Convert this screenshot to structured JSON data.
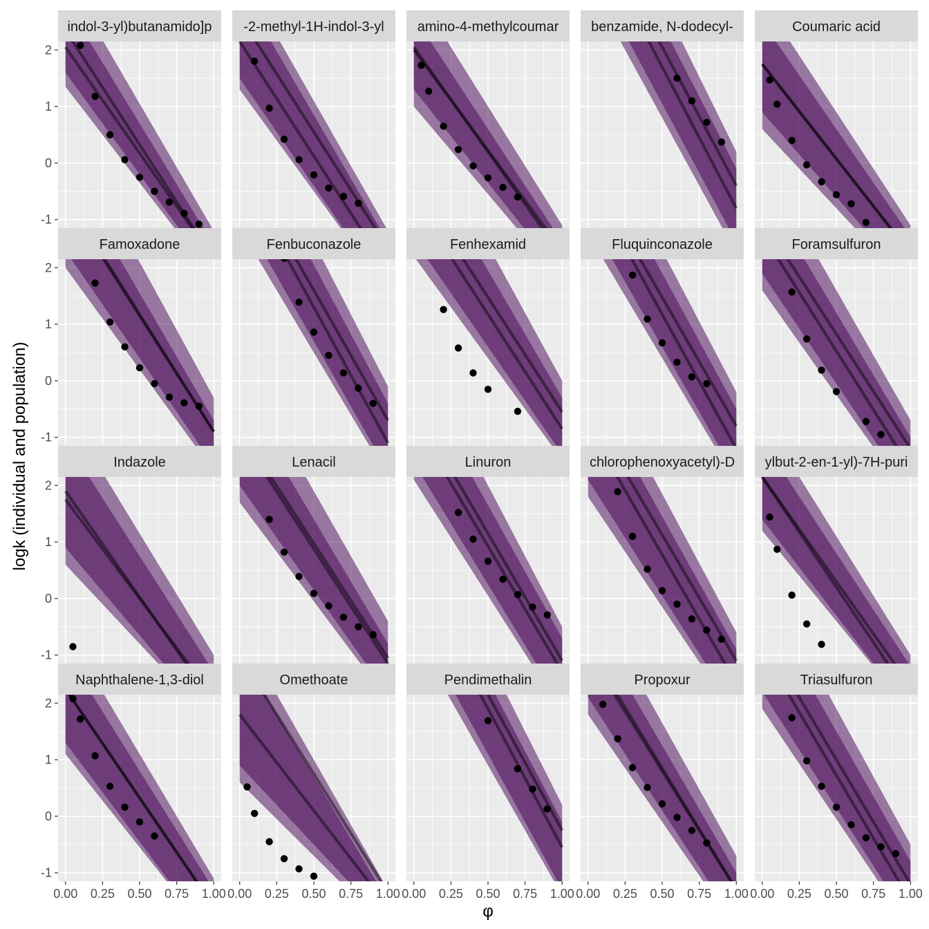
{
  "chart_data": {
    "type": "faceted-line-ribbon-scatter",
    "xlabel": "φ",
    "ylabel": "logk (individual and population)",
    "xlim": [
      -0.05,
      1.05
    ],
    "ylim": [
      -1.15,
      2.15
    ],
    "x_ticks": [
      0,
      0.25,
      0.5,
      0.75,
      1
    ],
    "x_tick_labels": [
      "0.00",
      "0.25",
      "0.50",
      "0.75",
      "1.00"
    ],
    "y_ticks": [
      -1,
      0,
      1,
      2
    ],
    "y_tick_labels": [
      "-1",
      "0",
      "1",
      "2"
    ],
    "grid": true,
    "ncol": 5,
    "colors": {
      "panel_bg": "#ebebeb",
      "grid_major": "#ffffff",
      "strip_bg": "#d9d9d9",
      "ribbon": "#440154",
      "line": "#000000",
      "point": "#000000"
    },
    "facets": [
      {
        "label": "indol-3-yl)butanamido]p",
        "curves": [
          [
            2.35,
            4.05
          ],
          [
            2.05,
            3.75
          ]
        ],
        "outer": [
          [
            3.3,
            4.5
          ],
          [
            1.35,
            3.4
          ]
        ],
        "inner": [
          [
            2.85,
            4.3
          ],
          [
            1.6,
            3.6
          ]
        ],
        "points": [
          [
            0.1,
            2.08
          ],
          [
            0.2,
            1.18
          ],
          [
            0.3,
            0.5
          ],
          [
            0.4,
            0.06
          ],
          [
            0.5,
            -0.25
          ],
          [
            0.6,
            -0.5
          ],
          [
            0.7,
            -0.69
          ],
          [
            0.8,
            -0.89
          ],
          [
            0.9,
            -1.08
          ]
        ]
      },
      {
        "label": "-2-methyl-1H-indol-3-yl",
        "curves": [
          [
            2.6,
            4.1
          ],
          [
            2.15,
            4.05
          ]
        ],
        "outer": [
          [
            3.4,
            4.6
          ],
          [
            1.3,
            3.6
          ]
        ],
        "inner": [
          [
            3.1,
            4.5
          ],
          [
            1.5,
            3.8
          ]
        ],
        "points": [
          [
            0.1,
            1.8
          ],
          [
            0.2,
            0.97
          ],
          [
            0.3,
            0.42
          ],
          [
            0.4,
            0.06
          ],
          [
            0.5,
            -0.21
          ],
          [
            0.6,
            -0.44
          ],
          [
            0.7,
            -0.59
          ],
          [
            0.8,
            -0.71
          ]
        ]
      },
      {
        "label": "amino-4-methylcoumar",
        "curves": [
          [
            2.05,
            3.7
          ],
          [
            2.0,
            3.55
          ]
        ],
        "outer": [
          [
            3.1,
            4.2
          ],
          [
            1.0,
            3.1
          ]
        ],
        "inner": [
          [
            2.6,
            4.0
          ],
          [
            1.3,
            3.3
          ]
        ],
        "points": [
          [
            0.05,
            1.73
          ],
          [
            0.1,
            1.27
          ],
          [
            0.2,
            0.65
          ],
          [
            0.3,
            0.24
          ],
          [
            0.4,
            -0.05
          ],
          [
            0.5,
            -0.26
          ],
          [
            0.6,
            -0.43
          ],
          [
            0.7,
            -0.6
          ]
        ]
      },
      {
        "label": "benzamide, N-dodecyl-",
        "curves": [
          [
            4.5,
            4.9
          ],
          [
            4.2,
            5.0
          ]
        ],
        "outer": [
          [
            5.5,
            5.3
          ],
          [
            3.2,
            4.8
          ]
        ],
        "inner": [
          [
            5.0,
            5.1
          ],
          [
            3.5,
            4.9
          ]
        ],
        "points": [
          [
            0.6,
            1.5
          ],
          [
            0.7,
            1.1
          ],
          [
            0.8,
            0.72
          ],
          [
            0.9,
            0.37
          ]
        ]
      },
      {
        "label": "Coumaric acid",
        "curves": [
          [
            1.75,
            3.35
          ],
          [
            1.75,
            3.35
          ]
        ],
        "outer": [
          [
            2.9,
            4.0
          ],
          [
            0.6,
            2.8
          ]
        ],
        "inner": [
          [
            2.5,
            3.8
          ],
          [
            0.9,
            3.0
          ]
        ],
        "points": [
          [
            0.05,
            1.47
          ],
          [
            0.1,
            1.04
          ],
          [
            0.2,
            0.4
          ],
          [
            0.3,
            -0.03
          ],
          [
            0.4,
            -0.33
          ],
          [
            0.5,
            -0.56
          ],
          [
            0.6,
            -0.72
          ],
          [
            0.7,
            -1.05
          ]
        ]
      },
      {
        "label": "Famoxadone",
        "curves": [
          [
            3.2,
            4.1
          ],
          [
            3.25,
            4.15
          ]
        ],
        "outer": [
          [
            4.5,
            4.8
          ],
          [
            2.0,
            3.6
          ]
        ],
        "inner": [
          [
            3.8,
            4.5
          ],
          [
            2.3,
            3.8
          ]
        ],
        "points": [
          [
            0.2,
            1.73
          ],
          [
            0.3,
            1.04
          ],
          [
            0.4,
            0.6
          ],
          [
            0.5,
            0.23
          ],
          [
            0.6,
            -0.05
          ],
          [
            0.7,
            -0.29
          ],
          [
            0.8,
            -0.39
          ],
          [
            0.9,
            -0.45
          ]
        ]
      },
      {
        "label": "Fenbuconazole",
        "curves": [
          [
            3.9,
            4.6
          ],
          [
            3.7,
            4.8
          ]
        ],
        "outer": [
          [
            5.0,
            5.1
          ],
          [
            2.7,
            4.4
          ]
        ],
        "inner": [
          [
            4.5,
            4.9
          ],
          [
            3.0,
            4.6
          ]
        ],
        "points": [
          [
            0.3,
            2.17
          ],
          [
            0.4,
            1.39
          ],
          [
            0.5,
            0.86
          ],
          [
            0.6,
            0.45
          ],
          [
            0.7,
            0.14
          ],
          [
            0.8,
            -0.13
          ],
          [
            0.9,
            -0.4
          ]
        ]
      },
      {
        "label": "Fenhexamid",
        "curves": [
          [
            3.5,
            4.05
          ],
          [
            3.2,
            4.05
          ]
        ],
        "outer": [
          [
            4.8,
            4.8
          ],
          [
            2.2,
            3.6
          ]
        ],
        "inner": [
          [
            4.2,
            4.5
          ],
          [
            2.5,
            3.8
          ]
        ],
        "points": [
          [
            0.2,
            1.26
          ],
          [
            0.3,
            0.58
          ],
          [
            0.4,
            0.14
          ],
          [
            0.5,
            -0.15
          ],
          [
            0.7,
            -0.54
          ]
        ]
      },
      {
        "label": "Fluquinconazole",
        "curves": [
          [
            3.75,
            4.55
          ],
          [
            3.55,
            4.75
          ]
        ],
        "outer": [
          [
            4.8,
            5.0
          ],
          [
            2.6,
            4.4
          ]
        ],
        "inner": [
          [
            4.3,
            4.8
          ],
          [
            2.9,
            4.6
          ]
        ],
        "points": [
          [
            0.3,
            1.87
          ],
          [
            0.4,
            1.09
          ],
          [
            0.5,
            0.67
          ],
          [
            0.6,
            0.33
          ],
          [
            0.7,
            0.07
          ],
          [
            0.8,
            -0.05
          ]
        ]
      },
      {
        "label": "Foramsulfuron",
        "curves": [
          [
            2.85,
            4.05
          ],
          [
            2.6,
            4.15
          ]
        ],
        "outer": [
          [
            3.9,
            4.6
          ],
          [
            1.6,
            3.7
          ]
        ],
        "inner": [
          [
            3.4,
            4.4
          ],
          [
            1.9,
            3.9
          ]
        ],
        "points": [
          [
            0.2,
            1.57
          ],
          [
            0.3,
            0.74
          ],
          [
            0.4,
            0.19
          ],
          [
            0.5,
            -0.19
          ],
          [
            0.7,
            -0.72
          ],
          [
            0.8,
            -0.95
          ]
        ]
      },
      {
        "label": "Indazole",
        "curves": [
          [
            1.75,
            3.5
          ],
          [
            1.9,
            3.75
          ]
        ],
        "outer": [
          [
            3.3,
            4.3
          ],
          [
            0.6,
            2.8
          ]
        ],
        "inner": [
          [
            2.8,
            4.1
          ],
          [
            0.9,
            3.1
          ]
        ],
        "points": [
          [
            0.05,
            -0.85
          ]
        ]
      },
      {
        "label": "Lenacil",
        "curves": [
          [
            3.0,
            4.05
          ],
          [
            2.9,
            4.05
          ]
        ],
        "outer": [
          [
            4.2,
            4.6
          ],
          [
            1.7,
            3.5
          ]
        ],
        "inner": [
          [
            3.6,
            4.4
          ],
          [
            2.0,
            3.7
          ]
        ],
        "points": [
          [
            0.2,
            1.4
          ],
          [
            0.3,
            0.82
          ],
          [
            0.4,
            0.39
          ],
          [
            0.5,
            0.09
          ],
          [
            0.6,
            -0.13
          ],
          [
            0.7,
            -0.33
          ],
          [
            0.8,
            -0.5
          ],
          [
            0.9,
            -0.64
          ]
        ]
      },
      {
        "label": "Linuron",
        "curves": [
          [
            3.4,
            4.5
          ],
          [
            3.15,
            4.45
          ]
        ],
        "outer": [
          [
            4.5,
            5.0
          ],
          [
            2.1,
            4.1
          ]
        ],
        "inner": [
          [
            4.0,
            4.7
          ],
          [
            2.4,
            4.3
          ]
        ],
        "points": [
          [
            0.3,
            1.52
          ],
          [
            0.4,
            1.05
          ],
          [
            0.5,
            0.66
          ],
          [
            0.6,
            0.34
          ],
          [
            0.7,
            0.07
          ],
          [
            0.8,
            -0.15
          ],
          [
            0.9,
            -0.29
          ]
        ]
      },
      {
        "label": "chlorophenoxyacetyl)-D",
        "curves": [
          [
            3.35,
            4.45
          ],
          [
            3.05,
            4.55
          ]
        ],
        "outer": [
          [
            4.3,
            4.9
          ],
          [
            1.8,
            3.9
          ]
        ],
        "inner": [
          [
            3.8,
            4.7
          ],
          [
            2.1,
            4.1
          ]
        ],
        "points": [
          [
            0.2,
            1.89
          ],
          [
            0.3,
            1.1
          ],
          [
            0.4,
            0.52
          ],
          [
            0.5,
            0.14
          ],
          [
            0.6,
            -0.1
          ],
          [
            0.7,
            -0.36
          ],
          [
            0.8,
            -0.56
          ],
          [
            0.9,
            -0.72
          ]
        ]
      },
      {
        "label": "ylbut-2-en-1-yl)-7H-puri",
        "curves": [
          [
            2.15,
            3.9
          ],
          [
            2.15,
            3.7
          ]
        ],
        "outer": [
          [
            3.2,
            4.2
          ],
          [
            1.2,
            3.2
          ]
        ],
        "inner": [
          [
            2.8,
            4.0
          ],
          [
            1.4,
            3.4
          ]
        ],
        "points": [
          [
            0.05,
            1.44
          ],
          [
            0.1,
            0.87
          ],
          [
            0.2,
            0.06
          ],
          [
            0.3,
            -0.45
          ],
          [
            0.4,
            -0.81
          ]
        ]
      },
      {
        "label": "Naphthalene-1,3-diol",
        "curves": [
          [
            2.25,
            3.85
          ],
          [
            2.25,
            3.85
          ]
        ],
        "outer": [
          [
            3.3,
            4.4
          ],
          [
            1.1,
            3.3
          ]
        ],
        "inner": [
          [
            2.9,
            4.2
          ],
          [
            1.3,
            3.5
          ]
        ],
        "points": [
          [
            0.05,
            2.08
          ],
          [
            0.1,
            1.72
          ],
          [
            0.2,
            1.07
          ],
          [
            0.3,
            0.53
          ],
          [
            0.4,
            0.16
          ],
          [
            0.5,
            -0.1
          ],
          [
            0.6,
            -0.35
          ]
        ]
      },
      {
        "label": "Omethoate",
        "curves": [
          [
            2.85,
            4.2
          ],
          [
            1.8,
            3.4
          ]
        ],
        "outer": [
          [
            3.3,
            4.6
          ],
          [
            0.6,
            2.6
          ]
        ],
        "inner": [
          [
            2.9,
            4.4
          ],
          [
            0.9,
            2.8
          ]
        ],
        "points": [
          [
            0.05,
            0.52
          ],
          [
            0.1,
            0.05
          ],
          [
            0.2,
            -0.45
          ],
          [
            0.3,
            -0.75
          ],
          [
            0.4,
            -0.93
          ],
          [
            0.5,
            -1.06
          ]
        ]
      },
      {
        "label": "Pendimethalin",
        "curves": [
          [
            4.55,
            4.8
          ],
          [
            4.35,
            4.9
          ]
        ],
        "outer": [
          [
            5.4,
            5.2
          ],
          [
            3.2,
            4.6
          ]
        ],
        "inner": [
          [
            4.9,
            5.0
          ],
          [
            3.5,
            4.8
          ]
        ],
        "points": [
          [
            0.5,
            1.69
          ],
          [
            0.7,
            0.84
          ],
          [
            0.8,
            0.48
          ],
          [
            0.9,
            0.13
          ]
        ]
      },
      {
        "label": "Propoxur",
        "curves": [
          [
            2.9,
            4.2
          ],
          [
            3.0,
            4.3
          ]
        ],
        "outer": [
          [
            4.0,
            4.7
          ],
          [
            1.8,
            3.8
          ]
        ],
        "inner": [
          [
            3.5,
            4.5
          ],
          [
            2.1,
            4.0
          ]
        ],
        "points": [
          [
            0.1,
            1.98
          ],
          [
            0.2,
            1.37
          ],
          [
            0.3,
            0.86
          ],
          [
            0.4,
            0.51
          ],
          [
            0.5,
            0.22
          ],
          [
            0.6,
            -0.02
          ],
          [
            0.7,
            -0.25
          ],
          [
            0.8,
            -0.47
          ]
        ]
      },
      {
        "label": "Triasulfuron",
        "curves": [
          [
            3.2,
            4.4
          ],
          [
            2.95,
            4.45
          ]
        ],
        "outer": [
          [
            4.3,
            4.8
          ],
          [
            1.9,
            3.9
          ]
        ],
        "inner": [
          [
            3.8,
            4.6
          ],
          [
            2.2,
            4.1
          ]
        ],
        "points": [
          [
            0.2,
            1.74
          ],
          [
            0.3,
            0.98
          ],
          [
            0.4,
            0.53
          ],
          [
            0.5,
            0.16
          ],
          [
            0.6,
            -0.15
          ],
          [
            0.7,
            -0.38
          ],
          [
            0.8,
            -0.54
          ],
          [
            0.9,
            -0.66
          ]
        ]
      }
    ]
  }
}
